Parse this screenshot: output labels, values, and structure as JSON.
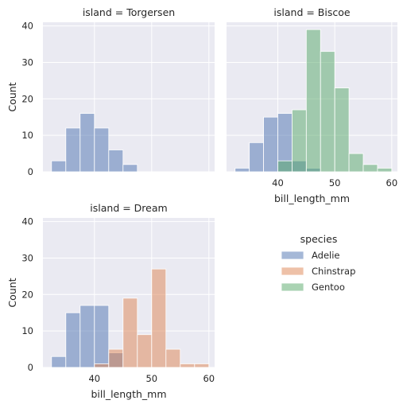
{
  "chart_data": {
    "type": "bar",
    "subtype": "faceted-histogram",
    "xlabel": "bill_length_mm",
    "ylabel": "Count",
    "xlim": [
      31,
      61
    ],
    "ylim": [
      0,
      41
    ],
    "xticks": [
      40,
      50,
      60
    ],
    "yticks": [
      0,
      10,
      20,
      30,
      40
    ],
    "grid": true,
    "legend": {
      "title": "species",
      "placement": "right",
      "entries": [
        "Adelie",
        "Chinstrap",
        "Gentoo"
      ]
    },
    "colors": {
      "Adelie": "#4c72b0",
      "Chinstrap": "#dd8452",
      "Gentoo": "#55a868",
      "background": "#eaeaf2",
      "grid": "#ffffff"
    },
    "facets": [
      {
        "title": "island = Torgersen",
        "series": [
          {
            "name": "Adelie",
            "bins": [
              [
                32.5,
                35.0,
                3
              ],
              [
                35.0,
                37.5,
                12
              ],
              [
                37.5,
                40.0,
                16
              ],
              [
                40.0,
                42.5,
                12
              ],
              [
                42.5,
                45.0,
                6
              ],
              [
                45.0,
                47.5,
                2
              ]
            ]
          }
        ]
      },
      {
        "title": "island = Biscoe",
        "series": [
          {
            "name": "Adelie",
            "bins": [
              [
                32.5,
                35.0,
                1
              ],
              [
                35.0,
                37.5,
                8
              ],
              [
                37.5,
                40.0,
                15
              ],
              [
                40.0,
                42.5,
                16
              ],
              [
                42.5,
                45.0,
                3
              ],
              [
                45.0,
                47.5,
                1
              ]
            ]
          },
          {
            "name": "Gentoo",
            "bins": [
              [
                40.0,
                42.5,
                3
              ],
              [
                42.5,
                45.0,
                17
              ],
              [
                45.0,
                47.5,
                39
              ],
              [
                47.5,
                50.0,
                33
              ],
              [
                50.0,
                52.5,
                23
              ],
              [
                52.5,
                55.0,
                5
              ],
              [
                55.0,
                57.5,
                2
              ],
              [
                57.5,
                60.0,
                1
              ]
            ]
          }
        ]
      },
      {
        "title": "island = Dream",
        "series": [
          {
            "name": "Adelie",
            "bins": [
              [
                32.5,
                35.0,
                3
              ],
              [
                35.0,
                37.5,
                15
              ],
              [
                37.5,
                40.0,
                17
              ],
              [
                40.0,
                42.5,
                17
              ],
              [
                42.5,
                45.0,
                4
              ]
            ]
          },
          {
            "name": "Chinstrap",
            "bins": [
              [
                40.0,
                42.5,
                1
              ],
              [
                42.5,
                45.0,
                5
              ],
              [
                45.0,
                47.5,
                19
              ],
              [
                47.5,
                50.0,
                9
              ],
              [
                50.0,
                52.5,
                27
              ],
              [
                52.5,
                55.0,
                5
              ],
              [
                55.0,
                57.5,
                1
              ],
              [
                57.5,
                60.0,
                1
              ]
            ]
          }
        ]
      }
    ]
  }
}
